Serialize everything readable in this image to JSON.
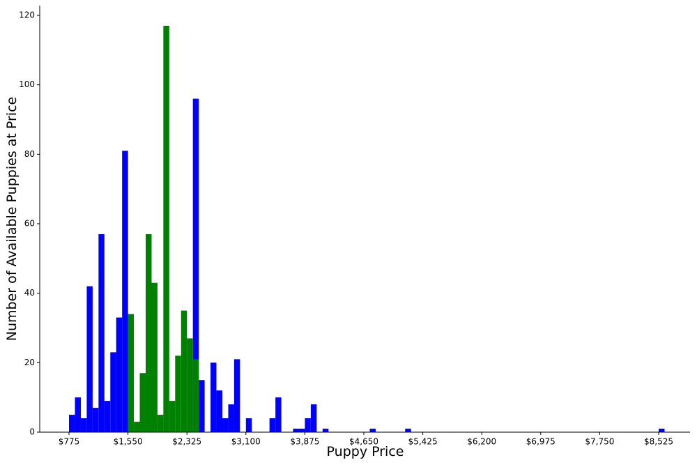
{
  "chart_data": {
    "type": "bar",
    "title": "",
    "xlabel": "Puppy Price",
    "ylabel": "Number of Available Puppies at Price",
    "xlim": [
      775,
      8525
    ],
    "ylim": [
      0,
      123
    ],
    "x_ticks": [
      {
        "value": 775,
        "label": "$775"
      },
      {
        "value": 1550,
        "label": "$1,550"
      },
      {
        "value": 2325,
        "label": "$2,325"
      },
      {
        "value": 3100,
        "label": "$3,100"
      },
      {
        "value": 3875,
        "label": "$3,875"
      },
      {
        "value": 4650,
        "label": "$4,650"
      },
      {
        "value": 5425,
        "label": "$5,425"
      },
      {
        "value": 6200,
        "label": "$6,200"
      },
      {
        "value": 6975,
        "label": "$6,975"
      },
      {
        "value": 7750,
        "label": "$7,750"
      },
      {
        "value": 8525,
        "label": "$8,525"
      }
    ],
    "y_ticks": [
      0,
      20,
      40,
      60,
      80,
      100,
      120
    ],
    "grid": false,
    "colors": {
      "blue": "#0000ff",
      "green": "#008000"
    },
    "series": [
      {
        "color": "blue",
        "bins": [
          {
            "x": 775,
            "y": 5
          },
          {
            "x": 853,
            "y": 10
          },
          {
            "x": 930,
            "y": 4
          },
          {
            "x": 1008,
            "y": 42
          },
          {
            "x": 1085,
            "y": 7
          },
          {
            "x": 1163,
            "y": 57
          },
          {
            "x": 1240,
            "y": 9
          },
          {
            "x": 1318,
            "y": 23
          },
          {
            "x": 1395,
            "y": 33
          },
          {
            "x": 1473,
            "y": 81
          },
          {
            "x": 2403,
            "y": 96
          },
          {
            "x": 2480,
            "y": 15
          },
          {
            "x": 2635,
            "y": 20
          },
          {
            "x": 2713,
            "y": 12
          },
          {
            "x": 2790,
            "y": 4
          },
          {
            "x": 2868,
            "y": 8
          },
          {
            "x": 2945,
            "y": 21
          },
          {
            "x": 3100,
            "y": 4
          },
          {
            "x": 3410,
            "y": 4
          },
          {
            "x": 3488,
            "y": 10
          },
          {
            "x": 3720,
            "y": 1
          },
          {
            "x": 3798,
            "y": 1
          },
          {
            "x": 3875,
            "y": 4
          },
          {
            "x": 3953,
            "y": 8
          },
          {
            "x": 4108,
            "y": 1
          },
          {
            "x": 4728,
            "y": 1
          },
          {
            "x": 5193,
            "y": 1
          },
          {
            "x": 8525,
            "y": 1
          }
        ]
      },
      {
        "color": "green",
        "bins": [
          {
            "x": 1550,
            "y": 34
          },
          {
            "x": 1628,
            "y": 3
          },
          {
            "x": 1705,
            "y": 17
          },
          {
            "x": 1783,
            "y": 57
          },
          {
            "x": 1860,
            "y": 43
          },
          {
            "x": 1938,
            "y": 5
          },
          {
            "x": 2015,
            "y": 117
          },
          {
            "x": 2093,
            "y": 9
          },
          {
            "x": 2170,
            "y": 22
          },
          {
            "x": 2248,
            "y": 35
          },
          {
            "x": 2325,
            "y": 27
          },
          {
            "x": 2403,
            "y": 21
          }
        ]
      }
    ]
  }
}
